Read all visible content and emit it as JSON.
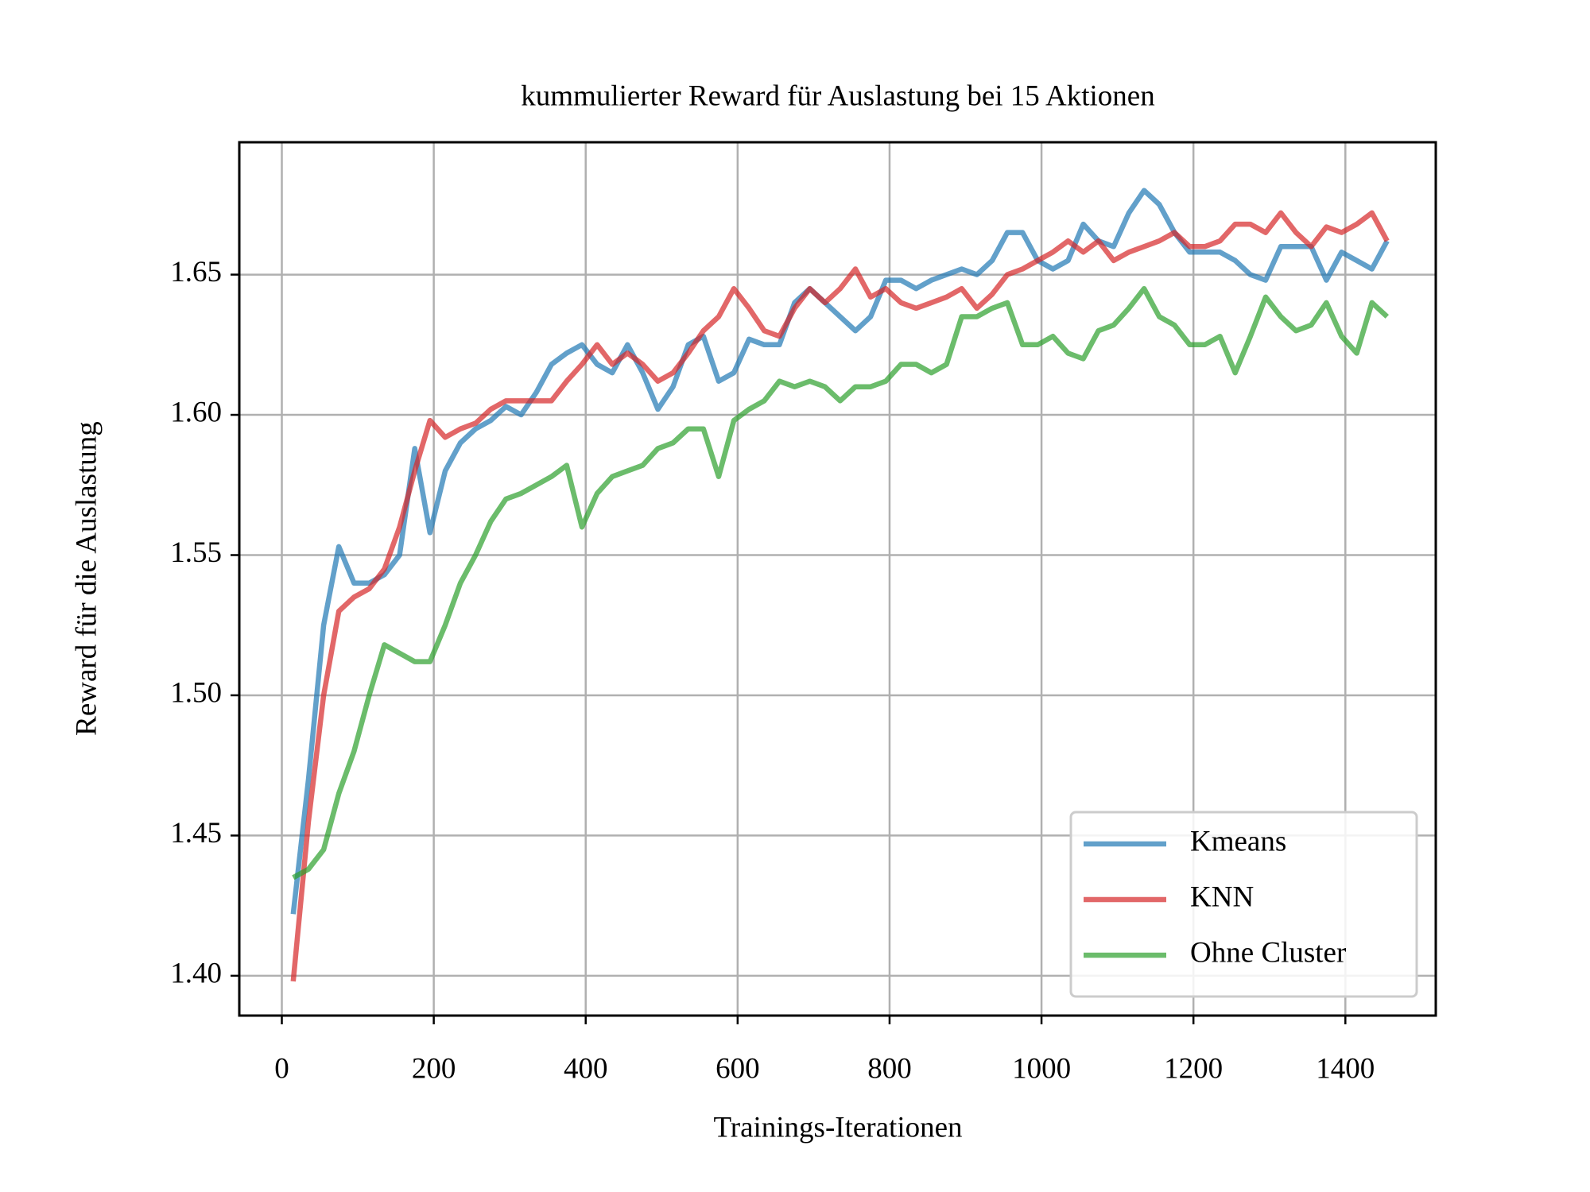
{
  "chart_data": {
    "type": "line",
    "title": "kummulierter Reward für Auslastung bei 15 Aktionen",
    "xlabel": "Trainings-Iterationen",
    "ylabel": "Reward für die Auslastung",
    "x": [
      15,
      35,
      55,
      75,
      95,
      115,
      135,
      155,
      175,
      195,
      215,
      235,
      255,
      275,
      295,
      315,
      335,
      355,
      375,
      395,
      415,
      435,
      455,
      475,
      495,
      515,
      535,
      555,
      575,
      595,
      615,
      635,
      655,
      675,
      695,
      715,
      735,
      755,
      775,
      795,
      815,
      835,
      855,
      875,
      895,
      915,
      935,
      955,
      975,
      995,
      1015,
      1035,
      1055,
      1075,
      1095,
      1115,
      1135,
      1155,
      1175,
      1195,
      1215,
      1235,
      1255,
      1275,
      1295,
      1315,
      1335,
      1355,
      1375,
      1395,
      1415,
      1435,
      1455
    ],
    "series": [
      {
        "name": "Kmeans",
        "color": "#1f77b4",
        "values": [
          1.422,
          1.47,
          1.525,
          1.553,
          1.54,
          1.54,
          1.543,
          1.55,
          1.588,
          1.558,
          1.58,
          1.59,
          1.595,
          1.598,
          1.603,
          1.6,
          1.608,
          1.618,
          1.622,
          1.625,
          1.618,
          1.615,
          1.625,
          1.615,
          1.602,
          1.61,
          1.625,
          1.628,
          1.612,
          1.615,
          1.627,
          1.625,
          1.625,
          1.64,
          1.645,
          1.64,
          1.635,
          1.63,
          1.635,
          1.648,
          1.648,
          1.645,
          1.648,
          1.65,
          1.652,
          1.65,
          1.655,
          1.665,
          1.665,
          1.655,
          1.652,
          1.655,
          1.668,
          1.662,
          1.66,
          1.672,
          1.68,
          1.675,
          1.665,
          1.658,
          1.658,
          1.658,
          1.655,
          1.65,
          1.648,
          1.66,
          1.66,
          1.66,
          1.648,
          1.658,
          1.655,
          1.652,
          1.662
        ]
      },
      {
        "name": "KNN",
        "color": "#d62728",
        "values": [
          1.398,
          1.455,
          1.5,
          1.53,
          1.535,
          1.538,
          1.545,
          1.56,
          1.58,
          1.598,
          1.592,
          1.595,
          1.597,
          1.602,
          1.605,
          1.605,
          1.605,
          1.605,
          1.612,
          1.618,
          1.625,
          1.618,
          1.622,
          1.618,
          1.612,
          1.615,
          1.622,
          1.63,
          1.635,
          1.645,
          1.638,
          1.63,
          1.628,
          1.638,
          1.645,
          1.64,
          1.645,
          1.652,
          1.642,
          1.645,
          1.64,
          1.638,
          1.64,
          1.642,
          1.645,
          1.638,
          1.643,
          1.65,
          1.652,
          1.655,
          1.658,
          1.662,
          1.658,
          1.662,
          1.655,
          1.658,
          1.66,
          1.662,
          1.665,
          1.66,
          1.66,
          1.662,
          1.668,
          1.668,
          1.665,
          1.672,
          1.665,
          1.66,
          1.667,
          1.665,
          1.668,
          1.672,
          1.662
        ]
      },
      {
        "name": "Ohne Cluster",
        "color": "#2ca02c",
        "values": [
          1.435,
          1.438,
          1.445,
          1.465,
          1.48,
          1.5,
          1.518,
          1.515,
          1.512,
          1.512,
          1.525,
          1.54,
          1.55,
          1.562,
          1.57,
          1.572,
          1.575,
          1.578,
          1.582,
          1.56,
          1.572,
          1.578,
          1.58,
          1.582,
          1.588,
          1.59,
          1.595,
          1.595,
          1.578,
          1.598,
          1.602,
          1.605,
          1.612,
          1.61,
          1.612,
          1.61,
          1.605,
          1.61,
          1.61,
          1.612,
          1.618,
          1.618,
          1.615,
          1.618,
          1.635,
          1.635,
          1.638,
          1.64,
          1.625,
          1.625,
          1.628,
          1.622,
          1.62,
          1.63,
          1.632,
          1.638,
          1.645,
          1.635,
          1.632,
          1.625,
          1.625,
          1.628,
          1.615,
          1.628,
          1.642,
          1.635,
          1.63,
          1.632,
          1.64,
          1.628,
          1.622,
          1.64,
          1.635
        ]
      }
    ],
    "xlim": [
      -56,
      1519
    ],
    "ylim": [
      1.3858,
      1.6972
    ],
    "xticks": [
      0,
      200,
      400,
      600,
      800,
      1000,
      1200,
      1400
    ],
    "yticks": [
      {
        "value": 1.4,
        "label": "1.40"
      },
      1.45,
      {
        "value": 1.5,
        "label": "1.50"
      },
      1.55,
      {
        "value": 1.6,
        "label": "1.60"
      },
      1.65
    ],
    "grid": true,
    "legend": "lower right"
  }
}
